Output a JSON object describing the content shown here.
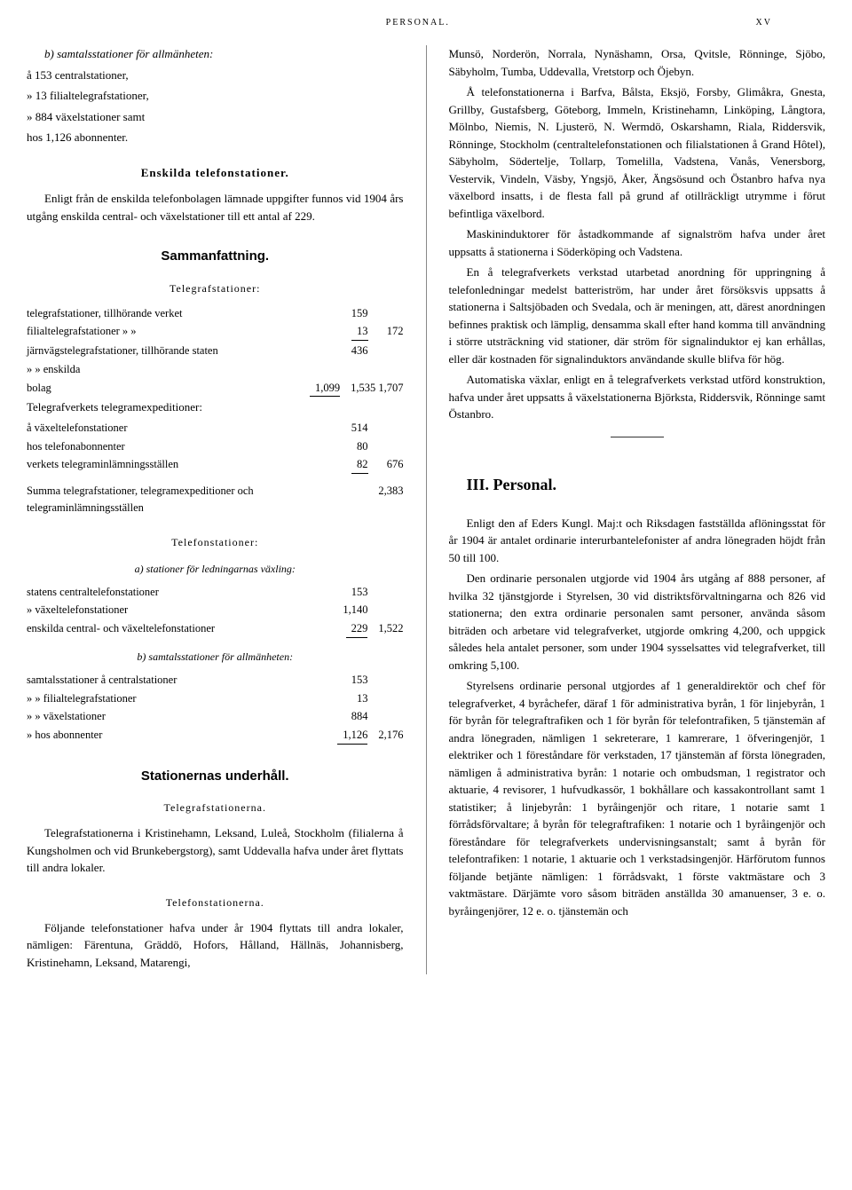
{
  "header_center": "PERSONAL.",
  "header_right": "XV",
  "col1": {
    "b_title": "b) samtalsstationer för allmänheten:",
    "b_lines": [
      "å 153 centralstationer,",
      "»   13 filialtelegrafstationer,",
      "» 884 växelstationer samt",
      "hos 1,126 abonnenter."
    ],
    "enskilda_title": "Enskilda telefonstationer.",
    "enskilda_para": "Enligt från de enskilda telefonbolagen lämnade uppgifter funnos vid 1904 års utgång enskilda central- och växelstationer till ett antal af 229.",
    "samman_title": "Sammanfattning.",
    "telegraf_sub": "Telegrafstationer:",
    "telegraf_lines": [
      {
        "label": "telegrafstationer, tillhörande verket",
        "v1": "159",
        "v2": ""
      },
      {
        "label": "filialtelegrafstationer    »              »",
        "v1": "13",
        "v2": "172"
      },
      {
        "label": "järnvägstelegrafstationer, tillhörande staten",
        "v1": "436",
        "v2": ""
      },
      {
        "label": "          »                    »        enskilda",
        "v1": "",
        "v2": ""
      },
      {
        "label": "    bolag",
        "v1": "1,099",
        "v2": "1,535  1,707"
      }
    ],
    "telegram_exp_title": "Telegrafverkets telegramexpeditioner:",
    "telegram_exp_lines": [
      {
        "label": "    å växeltelefonstationer",
        "v1": "514",
        "v2": ""
      },
      {
        "label": "    hos telefonabonnenter",
        "v1": "80",
        "v2": ""
      },
      {
        "label": "    verkets telegraminlämningsställen",
        "v1": "82",
        "v2": "676"
      }
    ],
    "summa_line": "Summa telegrafstationer, telegramexpeditioner och telegraminlämningsställen",
    "summa_val": "2,383",
    "telefon_sub": "Telefonstationer:",
    "a_title": "a) stationer för ledningarnas växling:",
    "a_lines": [
      {
        "label": "statens centraltelefonstationer",
        "v1": "153",
        "v2": ""
      },
      {
        "label": "   »     växeltelefonstationer",
        "v1": "1,140",
        "v2": ""
      },
      {
        "label": "enskilda central- och växeltelefonstationer",
        "v1": "229",
        "v2": "1,522"
      }
    ],
    "b2_title": "b) samtalsstationer för allmänheten:",
    "b2_lines": [
      {
        "label": "samtalsstationer å centralstationer",
        "v1": "153",
        "v2": ""
      },
      {
        "label": "      »            » filialtelegrafstationer",
        "v1": "13",
        "v2": ""
      },
      {
        "label": "      »            » växelstationer",
        "v1": "884",
        "v2": ""
      },
      {
        "label": "      »          hos abonnenter",
        "v1": "1,126",
        "v2": "2,176"
      }
    ],
    "underhall_title": "Stationernas underhåll.",
    "telegraf_st_title": "Telegrafstationerna.",
    "telegraf_st_para": "Telegrafstationerna i Kristinehamn, Leksand, Luleå, Stockholm (filialerna å Kungsholmen och vid Brunkebergstorg), samt Uddevalla hafva under året flyttats till andra lokaler.",
    "telefon_st_title": "Telefonstationerna.",
    "telefon_st_para": "Följande telefonstationer hafva under år 1904 flyttats till andra lokaler, nämligen: Färentuna, Gräddö, Hofors, Hålland, Hällnäs, Johannisberg, Kristinehamn, Leksand, Matarengi,"
  },
  "col2": {
    "para1": "Munsö, Norderön, Norrala, Nynäshamn, Orsa, Qvitsle, Rönninge, Sjöbo, Säbyholm, Tumba, Uddevalla, Vretstorp och Öjebyn.",
    "para2": "Å telefonstationerna i Barfva, Bålsta, Eksjö, Forsby, Glimåkra, Gnesta, Grillby, Gustafsberg, Göteborg, Immeln, Kristinehamn, Linköping, Långtora, Mölnbo, Niemis, N. Ljusterö, N. Wermdö, Oskarshamn, Riala, Riddersvik, Rönninge, Stockholm (centraltelefonstationen och filialstationen å Grand Hôtel), Säbyholm, Södertelje, Tollarp, Tomelilla, Vadstena, Vanås, Venersborg, Vestervik, Vindeln, Väsby, Yngsjö, Åker, Ängsösund och Östanbro hafva nya växelbord insatts, i de flesta fall på grund af otillräckligt utrymme i förut befintliga växelbord.",
    "para3": "Maskininduktorer för åstadkommande af signalström hafva under året uppsatts å stationerna i Söderköping och Vadstena.",
    "para4": "En å telegrafverkets verkstad utarbetad anordning för uppringning å telefonledningar medelst batteriström, har under året försöksvis uppsatts å stationerna i Saltsjöbaden och Svedala, och är meningen, att, därest anordningen befinnes praktisk och lämplig, densamma skall efter hand komma till användning i större utsträckning vid stationer, där ström för signalinduktor ej kan erhållas, eller där kostnaden för signalinduktors användande skulle blifva för hög.",
    "para5": "Automatiska växlar, enligt en å telegrafverkets verkstad utförd konstruktion, hafva under året uppsatts å växelstationerna Björksta, Riddersvik, Rönninge samt Östanbro.",
    "personal_title": "III.   Personal.",
    "personal_para1_a": "Enligt den af Eders Kungl. Maj:t och Riksdagen fastställda aflöningsstat för år 1904 är antalet ordinarie interurbantelefonister af andra lönegraden höjdt från 50 till 100.",
    "personal_para2": "Den ordinarie personalen utgjorde vid 1904 års utgång af 888 personer, af hvilka 32 tjänstgjorde i Styrelsen, 30 vid distriktsförvaltningarna och 826 vid stationerna; den extra ordinarie personalen samt personer, använda såsom biträden och arbetare vid telegrafverket, utgjorde omkring 4,200, och uppgick således hela antalet personer, som under 1904 sysselsattes vid telegrafverket, till omkring 5,100.",
    "personal_para3": "Styrelsens ordinarie personal utgjordes af 1 generaldirektör och chef för telegrafverket, 4 byråchefer, däraf 1 för administrativa byrån, 1 för linjebyrån, 1 för byrån för telegraftrafiken och 1 för byrån för telefontrafiken, 5 tjänstemän af andra lönegraden, nämligen 1 sekreterare, 1 kamrerare, 1 öfveringenjör, 1 elektriker och 1 föreståndare för verkstaden, 17 tjänstemän af första lönegraden, nämligen å administrativa byrån: 1 notarie och ombudsman, 1 registrator och aktuarie, 4 revisorer, 1 hufvudkassör, 1 bokhållare och kassakontrollant samt 1 statistiker; å linjebyrån: 1 byråingenjör och ritare, 1 notarie samt 1 förrådsförvaltare; å byrån för telegraftrafiken: 1 notarie och 1 byråingenjör och föreståndare för telegrafverkets undervisningsanstalt; samt å byrån för telefontrafiken: 1 notarie, 1 aktuarie och 1 verkstadsingenjör. Härförutom funnos följande betjänte nämligen: 1 förrådsvakt, 1 förste vaktmästare och 3 vaktmästare. Därjämte voro såsom biträden anställda 30 amanuenser, 3 e. o. byråingenjörer, 12 e. o. tjänstemän och"
  }
}
